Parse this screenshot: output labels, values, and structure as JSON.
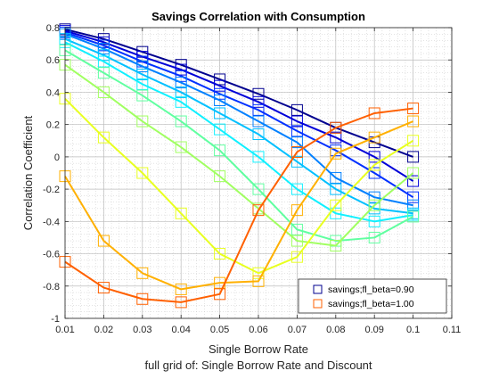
{
  "chart_data": {
    "type": "line",
    "title": "Savings Correlation with Consumption",
    "xlabel": "Single Borrow Rate",
    "ylabel": "Correlation Coefficient",
    "subtitle": "full grid of: Single Borrow Rate and Discount",
    "xlim": [
      0.01,
      0.11
    ],
    "ylim": [
      -1,
      0.8
    ],
    "xticks": [
      "0.01",
      "0.02",
      "0.03",
      "0.04",
      "0.05",
      "0.06",
      "0.07",
      "0.08",
      "0.09",
      "0.1",
      "0.11"
    ],
    "yticks": [
      "-1",
      "-0.8",
      "-0.6",
      "-0.4",
      "-0.2",
      "0",
      "0.2",
      "0.4",
      "0.6",
      "0.8"
    ],
    "grid": true,
    "x": [
      0.01,
      0.02,
      0.03,
      0.04,
      0.05,
      0.06,
      0.07,
      0.08,
      0.09,
      0.1
    ],
    "series": [
      {
        "name": "savings;fl_beta=0.90",
        "color": "#00008f",
        "values": [
          0.79,
          0.73,
          0.65,
          0.57,
          0.48,
          0.39,
          0.29,
          0.18,
          0.09,
          0.0
        ],
        "legend": true
      },
      {
        "color": "#0000d8",
        "values": [
          0.78,
          0.71,
          0.62,
          0.54,
          0.44,
          0.34,
          0.22,
          0.12,
          0.0,
          -0.15
        ]
      },
      {
        "color": "#0030ff",
        "values": [
          0.77,
          0.69,
          0.59,
          0.5,
          0.39,
          0.29,
          0.16,
          0.04,
          -0.1,
          -0.25
        ]
      },
      {
        "color": "#0080ff",
        "values": [
          0.76,
          0.67,
          0.56,
          0.46,
          0.35,
          0.22,
          0.09,
          -0.13,
          -0.25,
          -0.3
        ]
      },
      {
        "color": "#00c0ff",
        "values": [
          0.73,
          0.63,
          0.51,
          0.4,
          0.27,
          0.14,
          -0.03,
          -0.2,
          -0.32,
          -0.35
        ]
      },
      {
        "color": "#10f0ff",
        "values": [
          0.71,
          0.59,
          0.45,
          0.34,
          0.17,
          0.0,
          -0.2,
          -0.35,
          -0.4,
          -0.36
        ]
      },
      {
        "color": "#60ffa0",
        "values": [
          0.66,
          0.52,
          0.38,
          0.22,
          0.04,
          -0.2,
          -0.45,
          -0.52,
          -0.5,
          -0.37
        ]
      },
      {
        "color": "#a0ff60",
        "values": [
          0.57,
          0.4,
          0.22,
          0.06,
          -0.12,
          -0.32,
          -0.52,
          -0.55,
          -0.3,
          -0.1
        ]
      },
      {
        "color": "#e8ff20",
        "values": [
          0.36,
          0.12,
          -0.1,
          -0.35,
          -0.6,
          -0.72,
          -0.62,
          -0.3,
          -0.05,
          0.1
        ]
      },
      {
        "color": "#ffb000",
        "values": [
          -0.12,
          -0.52,
          -0.72,
          -0.82,
          -0.78,
          -0.77,
          -0.33,
          0.02,
          0.12,
          0.22
        ]
      },
      {
        "name": "savings;fl_beta=1.00",
        "color": "#ff6000",
        "values": [
          -0.65,
          -0.81,
          -0.88,
          -0.9,
          -0.85,
          -0.33,
          0.03,
          0.18,
          0.27,
          0.3
        ],
        "legend": true
      }
    ]
  }
}
